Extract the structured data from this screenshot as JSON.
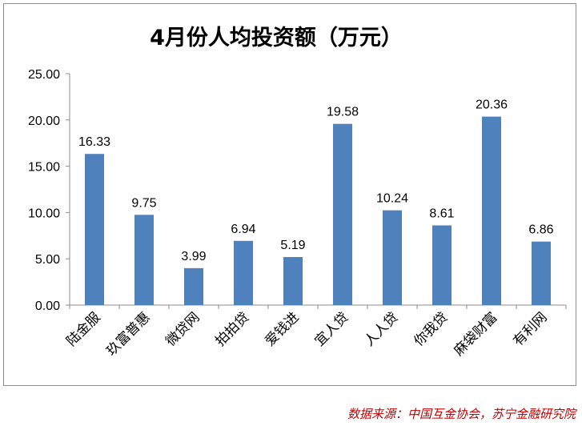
{
  "chart_data": {
    "type": "bar",
    "title": "4月份人均投资额（万元）",
    "categories": [
      "陆金服",
      "玖富普惠",
      "微贷网",
      "拍拍贷",
      "爱钱进",
      "宜人贷",
      "人人贷",
      "你我贷",
      "麻袋财富",
      "有利网"
    ],
    "values": [
      16.33,
      9.75,
      3.99,
      6.94,
      5.19,
      19.58,
      10.24,
      8.61,
      20.36,
      6.86
    ],
    "value_labels": [
      "16.33",
      "9.75",
      "3.99",
      "6.94",
      "5.19",
      "19.58",
      "10.24",
      "8.61",
      "20.36",
      "6.86"
    ],
    "yticks": [
      "0.00",
      "5.00",
      "10.00",
      "15.00",
      "20.00",
      "25.00"
    ],
    "ylim": [
      0,
      25
    ],
    "xlabel": "",
    "ylabel": "",
    "grid": false,
    "legend": "none",
    "bar_color": "#4f81bd"
  },
  "source_note": "数据来源：中国互金协会，苏宁金融研究院"
}
